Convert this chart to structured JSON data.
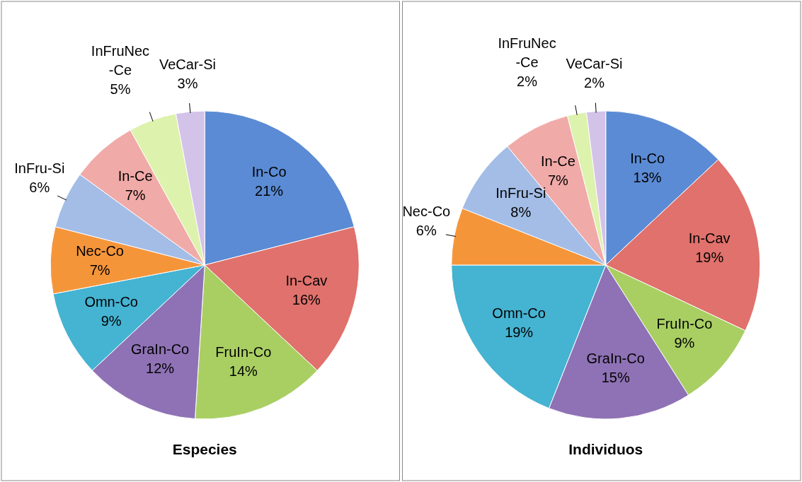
{
  "chart_data": [
    {
      "type": "pie",
      "title": "Especies",
      "categories": [
        "In-Co",
        "In-Cav",
        "FruIn-Co",
        "GraIn-Co",
        "Omn-Co",
        "Nec-Co",
        "InFru-Si",
        "In-Ce",
        "InFruNec-Ce",
        "VeCar-Si"
      ],
      "values": [
        21,
        16,
        14,
        12,
        9,
        7,
        6,
        7,
        5,
        3
      ],
      "value_labels": [
        "21%",
        "16%",
        "14%",
        "12%",
        "9%",
        "7%",
        "6%",
        "7%",
        "5%",
        "3%"
      ],
      "colors": [
        "#5b8bd4",
        "#e0716c",
        "#a9cf63",
        "#8f72b5",
        "#45b3d2",
        "#f5953a",
        "#a3bde6",
        "#f0aaa8",
        "#ddf2ac",
        "#d3c3e8"
      ],
      "legend": false
    },
    {
      "type": "pie",
      "title": "Individuos",
      "categories": [
        "In-Co",
        "In-Cav",
        "FruIn-Co",
        "GraIn-Co",
        "Omn-Co",
        "Nec-Co",
        "InFru-Si",
        "In-Ce",
        "InFruNec-Ce",
        "VeCar-Si"
      ],
      "values": [
        13,
        19,
        9,
        15,
        19,
        6,
        8,
        7,
        2,
        2
      ],
      "value_labels": [
        "13%",
        "19%",
        "9%",
        "15%",
        "19%",
        "6%",
        "8%",
        "7%",
        "2%",
        "2%"
      ],
      "colors": [
        "#5b8bd4",
        "#e0716c",
        "#a9cf63",
        "#8f72b5",
        "#45b3d2",
        "#f5953a",
        "#a3bde6",
        "#f0aaa8",
        "#ddf2ac",
        "#d3c3e8"
      ],
      "legend": false
    }
  ]
}
